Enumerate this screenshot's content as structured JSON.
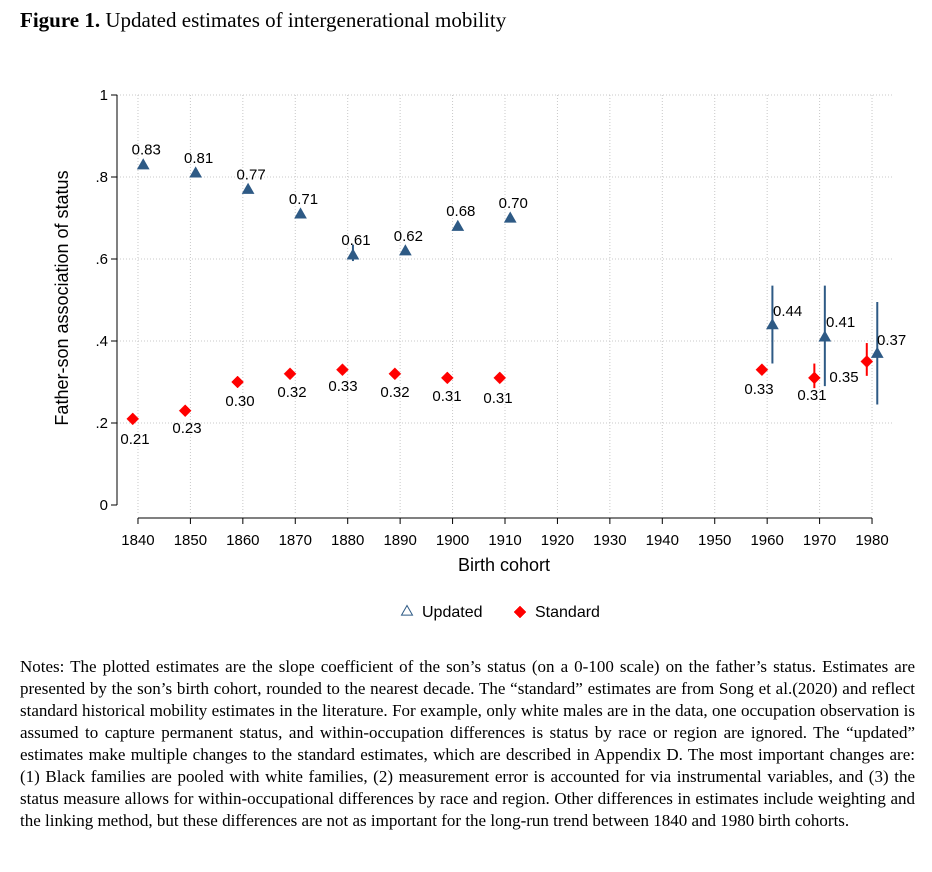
{
  "figure": {
    "number": "Figure 1.",
    "title": "Updated estimates of intergenerational mobility"
  },
  "chart_data": {
    "type": "scatter",
    "xlabel": "Birth cohort",
    "ylabel": "Father-son association of status",
    "xlim": [
      1836,
      1984
    ],
    "ylim": [
      0,
      1
    ],
    "x_ticks": [
      1840,
      1850,
      1860,
      1870,
      1880,
      1890,
      1900,
      1910,
      1920,
      1930,
      1940,
      1950,
      1960,
      1970,
      1980
    ],
    "y_ticks": [
      {
        "value": 0,
        "label": "0"
      },
      {
        "value": 0.2,
        "label": ".2"
      },
      {
        "value": 0.4,
        "label": ".4"
      },
      {
        "value": 0.6,
        "label": ".6"
      },
      {
        "value": 0.8,
        "label": ".8"
      },
      {
        "value": 1,
        "label": "1"
      }
    ],
    "grid": true,
    "legend_position": "bottom",
    "series": [
      {
        "name": "Updated",
        "marker": "triangle",
        "color": "#2e5a85",
        "points": [
          {
            "x": 1841,
            "y": 0.83,
            "label": "0.83"
          },
          {
            "x": 1851,
            "y": 0.81,
            "label": "0.81"
          },
          {
            "x": 1861,
            "y": 0.77,
            "label": "0.77"
          },
          {
            "x": 1871,
            "y": 0.71,
            "label": "0.71"
          },
          {
            "x": 1881,
            "y": 0.61,
            "label": "0.61",
            "ci": [
              0.595,
              0.635
            ]
          },
          {
            "x": 1891,
            "y": 0.62,
            "label": "0.62"
          },
          {
            "x": 1901,
            "y": 0.68,
            "label": "0.68"
          },
          {
            "x": 1911,
            "y": 0.7,
            "label": "0.70"
          },
          {
            "x": 1961,
            "y": 0.44,
            "label": "0.44",
            "ci": [
              0.345,
              0.535
            ]
          },
          {
            "x": 1971,
            "y": 0.41,
            "label": "0.41",
            "ci": [
              0.29,
              0.535
            ]
          },
          {
            "x": 1981,
            "y": 0.37,
            "label": "0.37",
            "ci": [
              0.245,
              0.495
            ]
          }
        ]
      },
      {
        "name": "Standard",
        "marker": "diamond",
        "color": "#ff0000",
        "points": [
          {
            "x": 1839,
            "y": 0.21,
            "label": "0.21"
          },
          {
            "x": 1849,
            "y": 0.23,
            "label": "0.23"
          },
          {
            "x": 1859,
            "y": 0.3,
            "label": "0.30"
          },
          {
            "x": 1869,
            "y": 0.32,
            "label": "0.32"
          },
          {
            "x": 1879,
            "y": 0.33,
            "label": "0.33"
          },
          {
            "x": 1889,
            "y": 0.32,
            "label": "0.32"
          },
          {
            "x": 1899,
            "y": 0.31,
            "label": "0.31"
          },
          {
            "x": 1909,
            "y": 0.31,
            "label": "0.31"
          },
          {
            "x": 1959,
            "y": 0.33,
            "label": "0.33"
          },
          {
            "x": 1969,
            "y": 0.31,
            "label": "0.31",
            "ci": [
              0.285,
              0.345
            ]
          },
          {
            "x": 1979,
            "y": 0.35,
            "label": "0.35",
            "ci": [
              0.315,
              0.395
            ]
          }
        ]
      }
    ]
  },
  "notes": "Notes: The plotted estimates are the slope coefficient of the son’s status (on a 0-100 scale) on the father’s status. Estimates are presented by the son’s birth cohort, rounded to the nearest decade. The “standard” estimates are from Song et al.(2020) and reflect standard historical mobility estimates in the literature. For example, only white males are in the data, one occupation observation is assumed to capture permanent status, and within-occupation differences is status by race or region are ignored. The “updated” estimates make multiple changes to the standard estimates, which are described in Appendix D. The most important changes are: (1) Black families are pooled with white families, (2) measurement error is accounted for via instrumental variables, and (3) the status measure allows for within-occupational differences by race and region. Other differences in estimates include weighting and the linking method, but these differences are not as important for the long-run trend between 1840 and 1980 birth cohorts."
}
